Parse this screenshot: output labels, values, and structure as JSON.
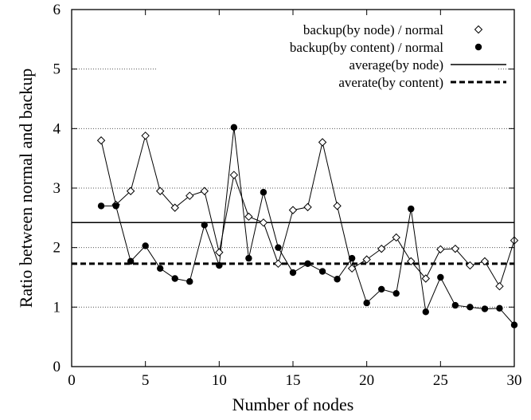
{
  "chart_data": {
    "type": "line",
    "xlabel": "Number of nodes",
    "ylabel": "Ratio between normal and backup",
    "xlim": [
      0,
      30
    ],
    "ylim": [
      0,
      6
    ],
    "xticks": [
      "0",
      "5",
      "10",
      "15",
      "20",
      "25",
      "30"
    ],
    "yticks": [
      "0",
      "1",
      "2",
      "3",
      "4",
      "5",
      "6"
    ],
    "grid": "horizontal dotted",
    "legend_position": "top-right",
    "x": [
      2,
      3,
      4,
      5,
      6,
      7,
      8,
      9,
      10,
      11,
      12,
      13,
      14,
      15,
      16,
      17,
      18,
      19,
      20,
      21,
      22,
      23,
      24,
      25,
      26,
      27,
      28,
      29,
      30
    ],
    "series": [
      {
        "name": "backup(by node) / normal",
        "marker": "open-diamond",
        "values": [
          3.8,
          2.72,
          2.95,
          3.88,
          2.95,
          2.67,
          2.87,
          2.95,
          1.92,
          3.22,
          2.52,
          2.42,
          1.73,
          2.63,
          2.68,
          3.77,
          2.7,
          1.65,
          1.8,
          1.98,
          2.17,
          1.77,
          1.48,
          1.97,
          1.98,
          1.7,
          1.77,
          1.35,
          2.12
        ]
      },
      {
        "name": "backup(by content) / normal",
        "marker": "filled-circle",
        "values": [
          2.7,
          2.7,
          1.77,
          2.03,
          1.65,
          1.48,
          1.43,
          2.38,
          1.7,
          4.02,
          1.82,
          2.93,
          2.0,
          1.58,
          1.73,
          1.6,
          1.47,
          1.82,
          1.07,
          1.3,
          1.23,
          2.65,
          0.92,
          1.5,
          1.03,
          1.0,
          0.97,
          0.98,
          0.7
        ]
      },
      {
        "name": "average(by node)",
        "style": "solid",
        "value": 2.42
      },
      {
        "name": "averate(by content)",
        "style": "dashed",
        "value": 1.73
      }
    ]
  }
}
